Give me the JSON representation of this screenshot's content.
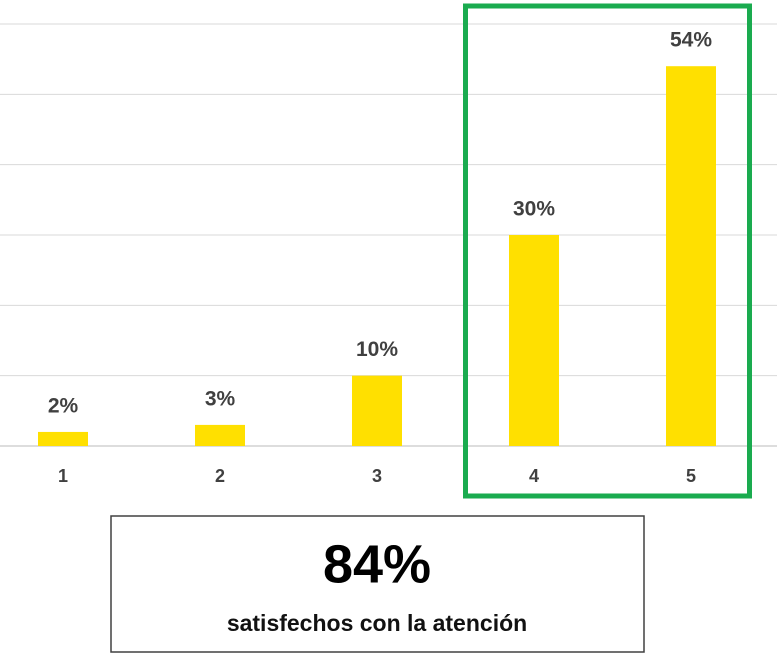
{
  "chart_data": {
    "type": "bar",
    "categories": [
      "1",
      "2",
      "3",
      "4",
      "5"
    ],
    "values": [
      2,
      3,
      10,
      30,
      54
    ],
    "value_labels": [
      "2%",
      "3%",
      "10%",
      "30%",
      "54%"
    ],
    "color": "#ffe000",
    "ylim": [
      0,
      60
    ],
    "yticks": [
      0,
      10,
      20,
      30,
      40,
      50,
      60
    ],
    "grid": true,
    "highlight": {
      "categories": [
        "4",
        "5"
      ],
      "color": "#1aab4f"
    },
    "summary": {
      "value": "84%",
      "text": "satisfechos con la atención"
    }
  }
}
